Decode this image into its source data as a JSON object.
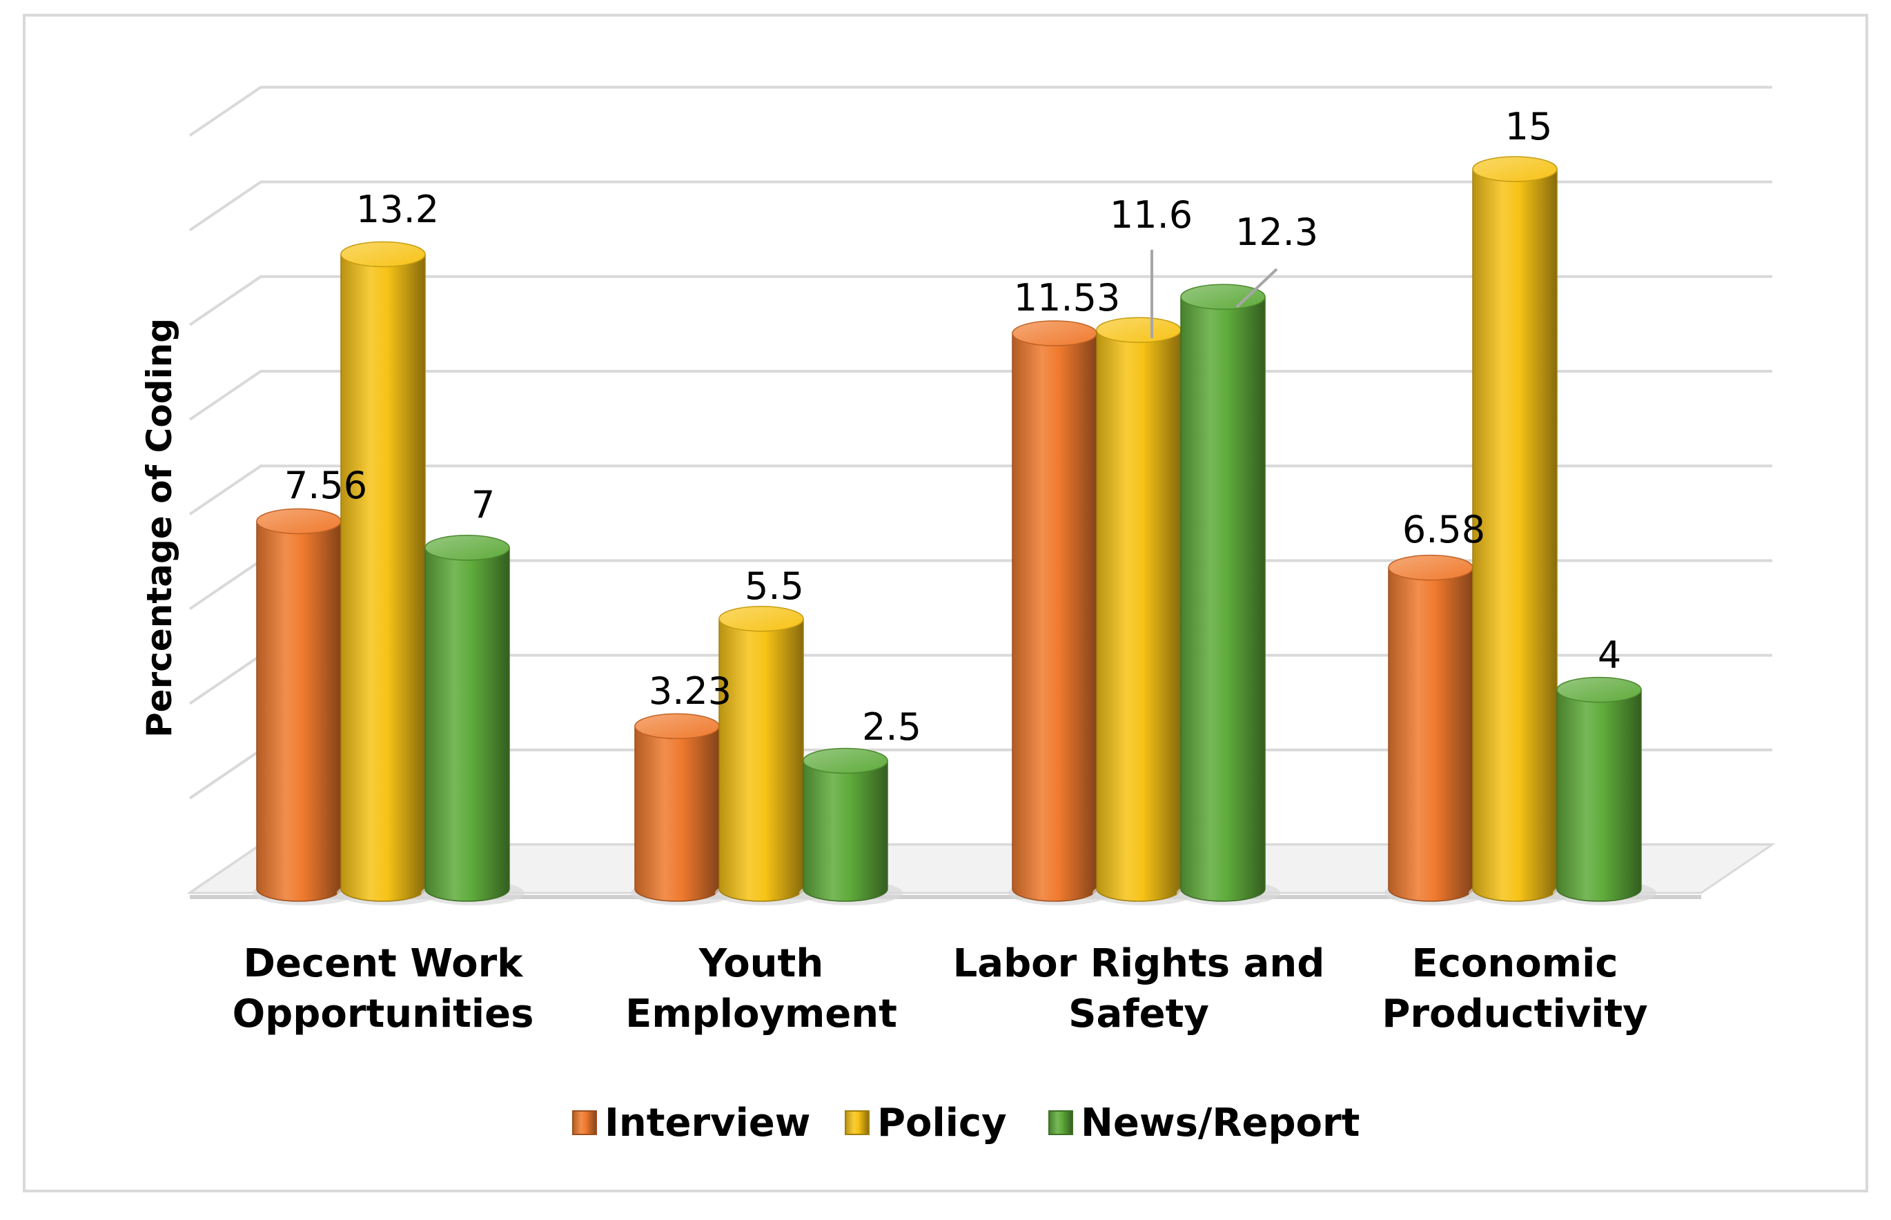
{
  "chart_data": {
    "type": "bar",
    "style": "3d-cylinder",
    "title": "",
    "xlabel": "",
    "ylabel": "Percentage of Coding",
    "ylim": [
      0,
      16
    ],
    "grid": true,
    "legend_position": "bottom",
    "categories": [
      [
        "Decent Work",
        "Opportunities"
      ],
      [
        "Youth",
        "Employment"
      ],
      [
        "Labor Rights and",
        "Safety"
      ],
      [
        "Economic",
        "Productivity"
      ]
    ],
    "series": [
      {
        "name": "Interview",
        "color": "#f07a2e",
        "values": [
          7.56,
          3.23,
          11.53,
          6.58
        ],
        "labels": [
          "7.56",
          "3.23",
          "11.53",
          "6.58"
        ]
      },
      {
        "name": "Policy",
        "color": "#f7c316",
        "values": [
          13.2,
          5.5,
          11.6,
          15
        ],
        "labels": [
          "13.2",
          "5.5",
          "11.6",
          "15"
        ]
      },
      {
        "name": "News/Report",
        "color": "#5fab3b",
        "values": [
          7,
          2.5,
          12.3,
          4
        ],
        "labels": [
          "7",
          "2.5",
          "12.3",
          "4"
        ]
      }
    ]
  }
}
